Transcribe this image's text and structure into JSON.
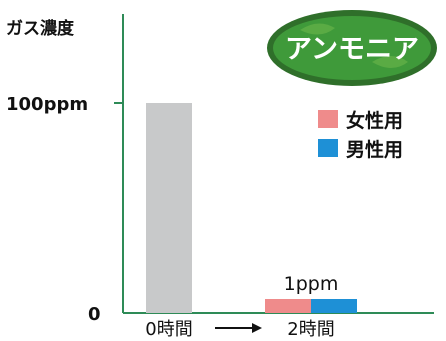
{
  "chart_data": {
    "type": "bar",
    "ylabel": "ガス濃度",
    "badge": "アンモニア",
    "yticks": [
      "100ppm",
      "0"
    ],
    "ylim": [
      0,
      130
    ],
    "categories": [
      "0時間",
      "2時間"
    ],
    "arrow_between_categories": "→",
    "series": [
      {
        "name": "女性用",
        "color": "#ef8b8b",
        "values": [
          null,
          1
        ]
      },
      {
        "name": "男性用",
        "color": "#1e90d6",
        "values": [
          null,
          1
        ]
      }
    ],
    "baseline": {
      "category": "0時間",
      "value": 100,
      "color": "#c8c9ca"
    },
    "data_labels": [
      {
        "category": "2時間",
        "text": "1ppm"
      }
    ],
    "legend": {
      "placement": "right",
      "items": [
        {
          "label": "女性用",
          "color": "#ef8b8b"
        },
        {
          "label": "男性用",
          "color": "#1e90d6"
        }
      ]
    },
    "colors": {
      "axis": "#2e8b57",
      "badge_fill": "#3f9a3a",
      "badge_outline": "#2f6f2a",
      "badge_highlight": "#8dcc5a"
    }
  }
}
